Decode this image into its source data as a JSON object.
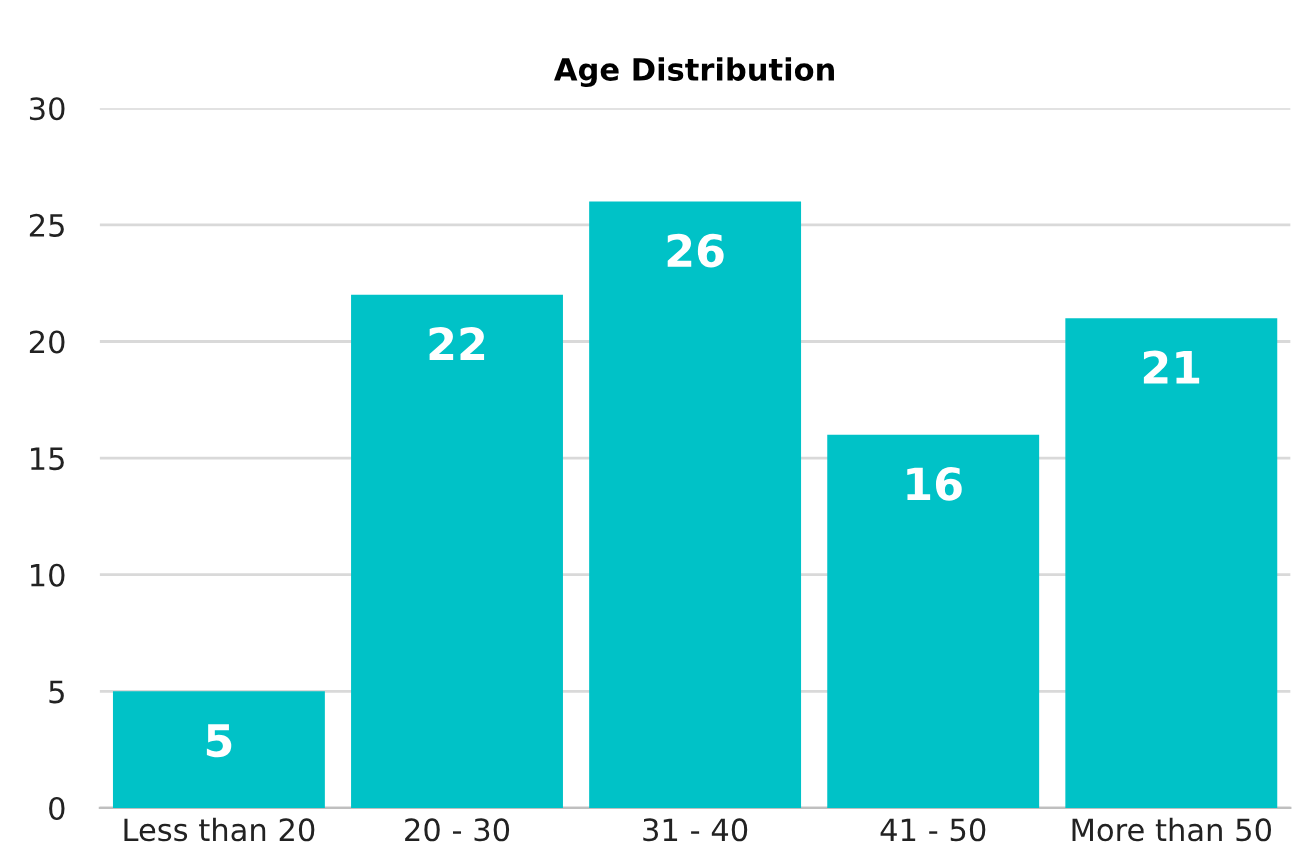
{
  "chart_data": {
    "type": "bar",
    "title": "Age Distribution",
    "categories": [
      "Less than 20",
      "20 - 30",
      "31 - 40",
      "41 - 50",
      "More than 50"
    ],
    "values": [
      5,
      22,
      26,
      16,
      21
    ],
    "color": "#00c2c7",
    "ylim": [
      0,
      30
    ],
    "yticks": [
      0,
      5,
      10,
      15,
      20,
      25,
      30
    ],
    "grid": "y",
    "data_labels": true
  }
}
